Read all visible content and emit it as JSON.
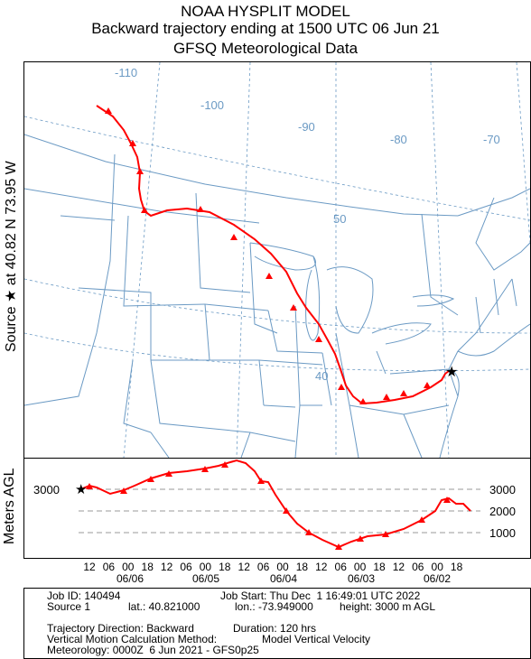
{
  "header": {
    "line1": "NOAA HYSPLIT MODEL",
    "line2": "Backward trajectory ending at 1500 UTC 06 Jun 21",
    "line3": "GFSQ Meteorological Data"
  },
  "map": {
    "source_label": "Source ★ at  40.82 N   73.95 W",
    "longitude_labels": [
      "-110",
      "-100",
      "-90",
      "-80",
      "-70"
    ],
    "latitude_labels": [
      "50",
      "40"
    ],
    "colors": {
      "trajectory": "#ff0000",
      "boundaries": "#6b9ac4",
      "gridlines": "#6b9ac4"
    }
  },
  "height_panel": {
    "axis_label": "Meters AGL",
    "left_tick": "3000",
    "right_ticks": [
      "3000",
      "2000",
      "1000"
    ],
    "hour_ticks": [
      "12",
      "06",
      "00",
      "18",
      "12",
      "06",
      "00",
      "18",
      "12",
      "06",
      "00",
      "18",
      "12",
      "06",
      "00",
      "18",
      "12",
      "06",
      "00",
      "18"
    ],
    "date_labels": [
      "06/06",
      "06/05",
      "06/04",
      "06/03",
      "06/02"
    ]
  },
  "footer": {
    "job_id": "Job ID: 140494",
    "job_start": "Job Start: Thu Dec  1 16:49:01 UTC 2022",
    "source": "Source 1",
    "lat": "lat.: 40.821000",
    "lon": "lon.: -73.949000",
    "height": "height: 3000 m AGL",
    "direction": "Trajectory Direction: Backward",
    "duration": "Duration: 120 hrs",
    "vertical_label": "Vertical Motion Calculation Method:",
    "vertical_value": "Model Vertical Velocity",
    "meteorology": "Meteorology: 0000Z  6 Jun 2021 - GFS0p25"
  }
}
